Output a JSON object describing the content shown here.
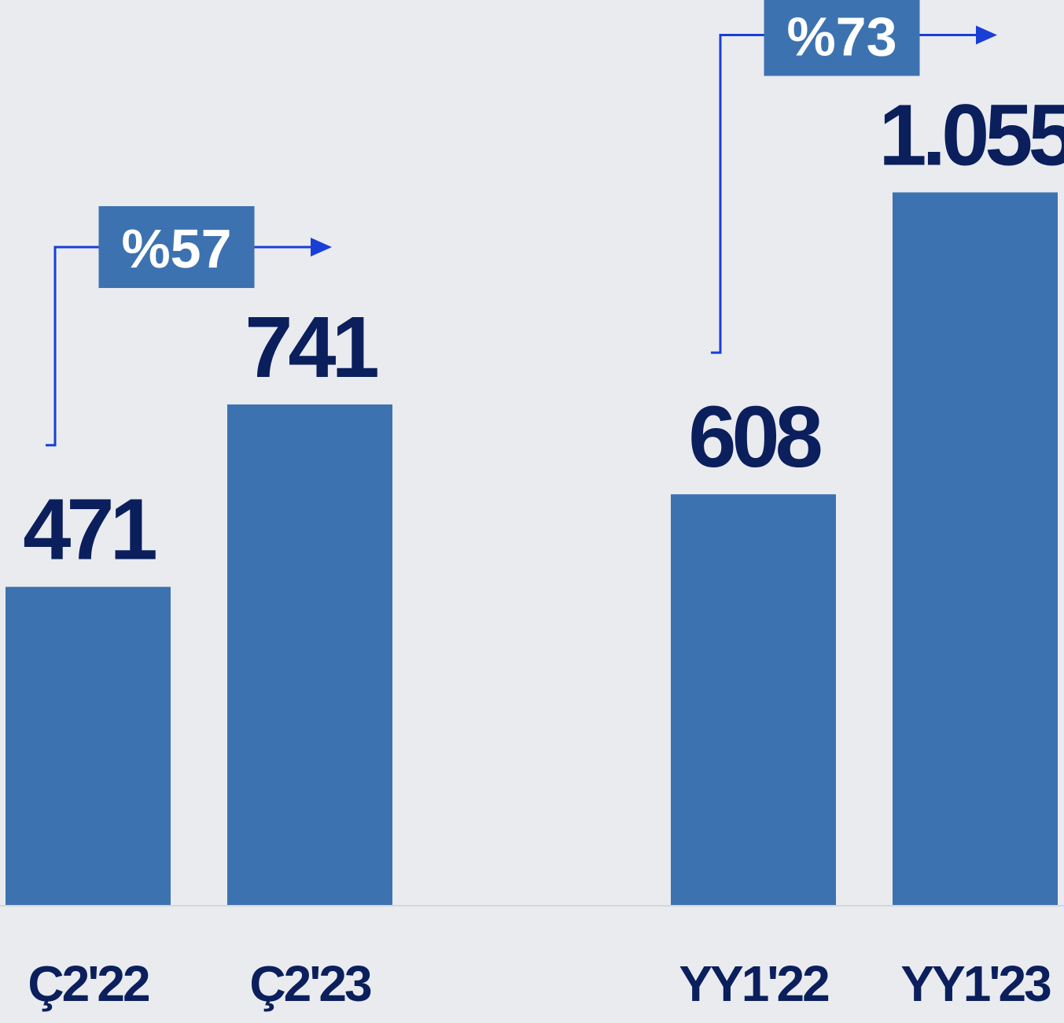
{
  "chart_data": {
    "type": "bar",
    "categories": [
      "Ç2'22",
      "Ç2'23",
      null,
      "YY1'22",
      "YY1'23"
    ],
    "values": [
      471,
      741,
      null,
      608,
      1055
    ],
    "value_labels": [
      "471",
      "741",
      null,
      "608",
      "1.055"
    ],
    "annotations": [
      "%57",
      "%73"
    ],
    "color": "#3d72b0",
    "ylim": [
      0,
      1200
    ]
  }
}
